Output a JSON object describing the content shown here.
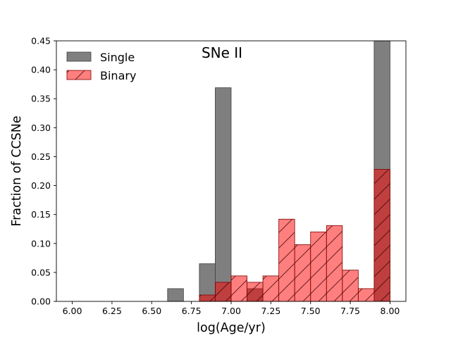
{
  "chart_data": {
    "type": "bar",
    "title": "SNe II",
    "xlabel": "log(Age/yr)",
    "ylabel": "Fraction of CCSNe",
    "xlim": [
      5.9,
      8.1
    ],
    "ylim": [
      0,
      0.45
    ],
    "bin_width": 0.1,
    "x_ticks": [
      6.0,
      6.25,
      6.5,
      6.75,
      7.0,
      7.25,
      7.5,
      7.75,
      8.0
    ],
    "x_tick_labels": [
      "6.00",
      "6.25",
      "6.50",
      "6.75",
      "7.00",
      "7.25",
      "7.50",
      "7.75",
      "8.00"
    ],
    "y_ticks": [
      0.0,
      0.05,
      0.1,
      0.15,
      0.2,
      0.25,
      0.3,
      0.35,
      0.4,
      0.45
    ],
    "y_tick_labels": [
      "0.00",
      "0.05",
      "0.10",
      "0.15",
      "0.20",
      "0.25",
      "0.30",
      "0.35",
      "0.40",
      "0.45"
    ],
    "legend_position": "top-left",
    "series": [
      {
        "name": "Single",
        "color": "#7f7f7f",
        "alpha": 1.0,
        "hatch": "none",
        "bins": [
          {
            "left": 6.6,
            "value": 0.022
          },
          {
            "left": 6.8,
            "value": 0.065
          },
          {
            "left": 6.9,
            "value": 0.369
          },
          {
            "left": 7.1,
            "value": 0.022
          },
          {
            "left": 7.9,
            "value": 0.45
          }
        ]
      },
      {
        "name": "Binary",
        "color": "#ff0000",
        "alpha": 0.5,
        "hatch": "/",
        "bins": [
          {
            "left": 6.8,
            "value": 0.011
          },
          {
            "left": 6.9,
            "value": 0.033
          },
          {
            "left": 7.0,
            "value": 0.044
          },
          {
            "left": 7.1,
            "value": 0.033
          },
          {
            "left": 7.2,
            "value": 0.044
          },
          {
            "left": 7.3,
            "value": 0.142
          },
          {
            "left": 7.4,
            "value": 0.098
          },
          {
            "left": 7.5,
            "value": 0.12
          },
          {
            "left": 7.6,
            "value": 0.131
          },
          {
            "left": 7.7,
            "value": 0.054
          },
          {
            "left": 7.8,
            "value": 0.022
          },
          {
            "left": 7.9,
            "value": 0.228
          }
        ]
      }
    ]
  }
}
